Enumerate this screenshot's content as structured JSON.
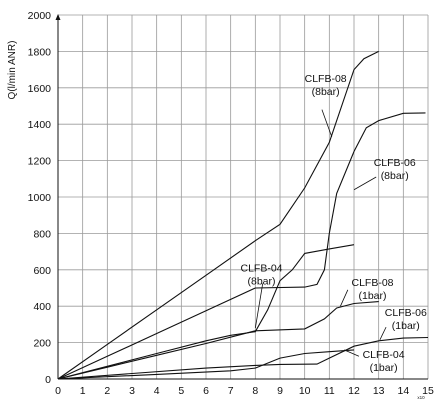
{
  "chart_data": {
    "type": "line",
    "title": "",
    "xlabel": "",
    "x_unit": "x10",
    "ylabel": "Q(l/min ANR)",
    "xlim": [
      0,
      15
    ],
    "ylim": [
      0,
      2000
    ],
    "xticks": [
      0,
      1,
      2,
      3,
      4,
      5,
      6,
      7,
      8,
      9,
      10,
      11,
      12,
      13,
      14,
      15
    ],
    "yticks": [
      0,
      200,
      400,
      600,
      800,
      1000,
      1200,
      1400,
      1600,
      1800,
      2000
    ],
    "grid": true,
    "legend": "none",
    "series": [
      {
        "x": [
          0,
          2,
          4,
          6,
          8,
          9,
          10,
          11,
          12,
          12.4,
          13
        ],
        "y": [
          0,
          190,
          380,
          570,
          760,
          850,
          1050,
          1300,
          1700,
          1760,
          1800
        ]
      },
      {
        "x": [
          0,
          2,
          4,
          6,
          8,
          10,
          10.5,
          10.8,
          11,
          11.3,
          12,
          12.5,
          13,
          14,
          14.9
        ],
        "y": [
          0,
          125,
          250,
          375,
          500,
          505,
          520,
          600,
          800,
          1020,
          1250,
          1380,
          1420,
          1460,
          1462
        ]
      },
      {
        "x": [
          0,
          2,
          4,
          6,
          7,
          8,
          8.5,
          9,
          9.5,
          10,
          11,
          12
        ],
        "y": [
          0,
          70,
          140,
          210,
          240,
          260,
          380,
          540,
          600,
          690,
          715,
          738
        ]
      },
      {
        "x": [
          0,
          2,
          4,
          6,
          8,
          10,
          10.8,
          11.3,
          12,
          13
        ],
        "y": [
          0,
          65,
          130,
          195,
          265,
          275,
          330,
          390,
          415,
          425
        ]
      },
      {
        "x": [
          0,
          3,
          6,
          8,
          9,
          10.5,
          11,
          12,
          13,
          14,
          15
        ],
        "y": [
          0,
          30,
          60,
          75,
          80,
          82,
          115,
          180,
          210,
          225,
          228
        ]
      },
      {
        "x": [
          0,
          4,
          7,
          8,
          9,
          10,
          11,
          12
        ],
        "y": [
          0,
          25,
          45,
          60,
          115,
          140,
          150,
          160
        ]
      }
    ],
    "annotations": [
      {
        "lines": [
          "CLFB-08",
          "(8bar)"
        ]
      },
      {
        "lines": [
          "CLFB-06",
          "(8bar)"
        ]
      },
      {
        "lines": [
          "CLFB-04",
          "(8bar)"
        ]
      },
      {
        "lines": [
          "CLFB-08",
          "(1bar)"
        ]
      },
      {
        "lines": [
          "CLFB-06",
          "(1bar)"
        ]
      },
      {
        "lines": [
          "CLFB-04",
          "(1bar)"
        ]
      }
    ]
  }
}
